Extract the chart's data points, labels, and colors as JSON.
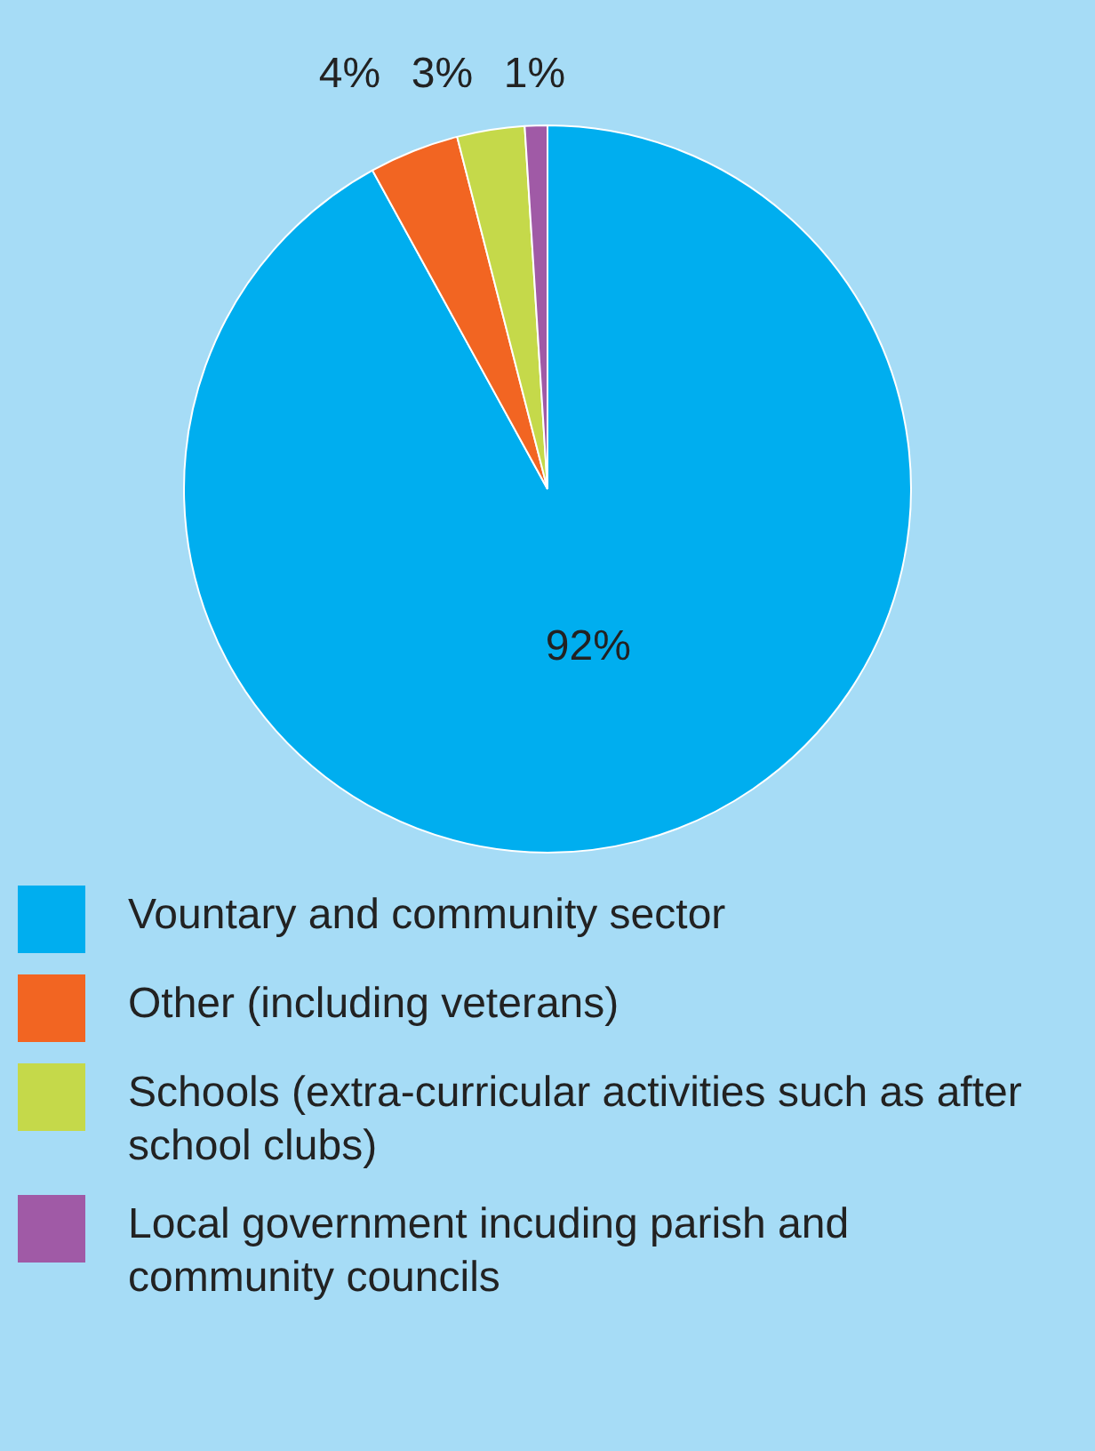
{
  "chart_data": {
    "type": "pie",
    "categories": [
      "Vountary and community sector",
      "Other (including veterans)",
      "Schools (extra-curricular activities such as after school clubs)",
      "Local government incuding parish and community councils"
    ],
    "values": [
      92,
      4,
      3,
      1
    ],
    "colors": [
      "#00aeef",
      "#f26522",
      "#c5d94a",
      "#a05aa6"
    ],
    "value_labels": [
      "92%",
      "4%",
      "3%",
      "1%"
    ],
    "legend": "bottom"
  }
}
